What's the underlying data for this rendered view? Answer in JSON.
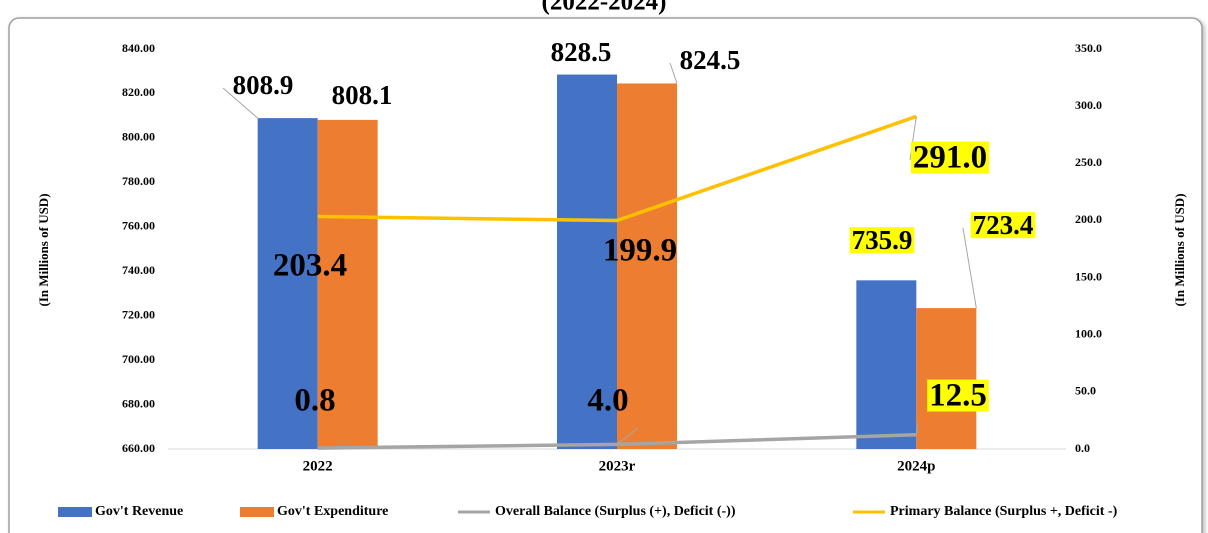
{
  "chart_data": {
    "type": "bar_line",
    "title": "(2022-2024)",
    "y_label": "(In Millions of USD)",
    "y2_label": "(In Millions of USD)",
    "categories": [
      "2022",
      "2023r",
      "2024p"
    ],
    "ylim": [
      660,
      840
    ],
    "yticks": [
      {
        "value": 660,
        "label": "660.00"
      },
      {
        "value": 680,
        "label": "680.00"
      },
      {
        "value": 700,
        "label": "700.00"
      },
      {
        "value": 720,
        "label": "720.00"
      },
      {
        "value": 740,
        "label": "740.00"
      },
      {
        "value": 760,
        "label": "760.00"
      },
      {
        "value": 780,
        "label": "780.00"
      },
      {
        "value": 800,
        "label": "800.00"
      },
      {
        "value": 820,
        "label": "820.00"
      },
      {
        "value": 840,
        "label": "840.00"
      }
    ],
    "y2lim": [
      0,
      350
    ],
    "y2ticks": [
      {
        "value": 0,
        "label": "0.0"
      },
      {
        "value": 50,
        "label": "50.0"
      },
      {
        "value": 100,
        "label": "100.0"
      },
      {
        "value": 150,
        "label": "150.0"
      },
      {
        "value": 200,
        "label": "200.0"
      },
      {
        "value": 250,
        "label": "250.0"
      },
      {
        "value": 300,
        "label": "300.0"
      },
      {
        "value": 350,
        "label": "350.0"
      }
    ],
    "legend": "bottom",
    "series": [
      {
        "name": "Gov't Revenue",
        "type": "bar",
        "color": "#4472c4",
        "values": [
          808.9,
          828.5,
          735.9
        ],
        "value_labels": [
          "808.9",
          "828.5",
          "735.9"
        ]
      },
      {
        "name": "Gov't Expenditure",
        "type": "bar",
        "color": "#ed7d31",
        "values": [
          808.1,
          824.5,
          723.4
        ],
        "value_labels": [
          "808.1",
          "824.5",
          "723.4"
        ]
      },
      {
        "name": "Overall Balance (Surplus (+), Deficit (-))",
        "type": "line",
        "axis": "y2",
        "color": "#a5a5a5",
        "values": [
          0.8,
          4.0,
          12.5
        ],
        "value_labels": [
          "0.8",
          "4.0",
          "12.5"
        ]
      },
      {
        "name": "Primary Balance (Surplus +, Deficit -)",
        "type": "line",
        "axis": "y2",
        "color": "#ffc000",
        "values": [
          203.4,
          199.9,
          291.0
        ],
        "value_labels": [
          "203.4",
          "199.9",
          "291.0"
        ]
      }
    ]
  }
}
